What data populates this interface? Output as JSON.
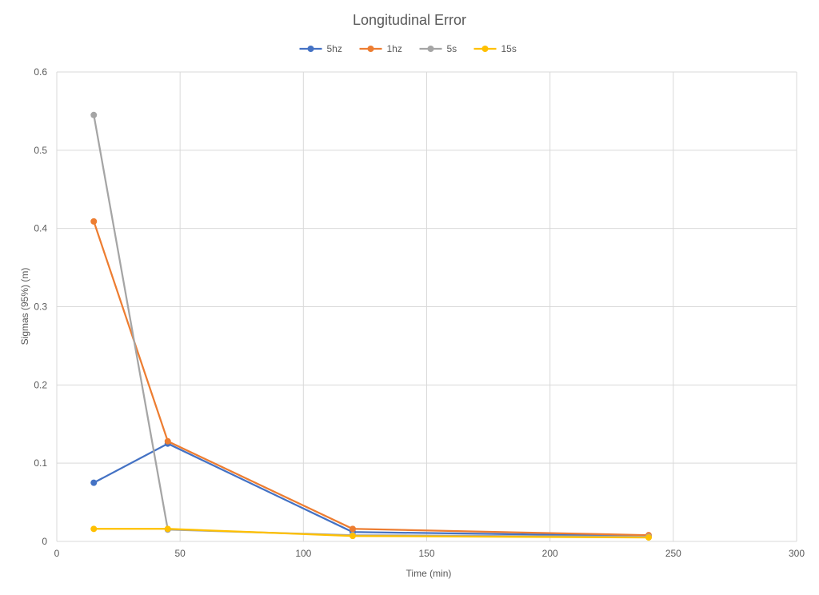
{
  "chart_data": {
    "type": "scatter",
    "title": "Longitudinal Error",
    "xlabel": "Time (min)",
    "ylabel": "Sigmas (95%) (m)",
    "xlim": [
      0,
      300
    ],
    "ylim": [
      0,
      0.6
    ],
    "x_ticks": [
      "0",
      "50",
      "100",
      "150",
      "200",
      "250",
      "300"
    ],
    "y_ticks": [
      "0",
      "0.1",
      "0.2",
      "0.3",
      "0.4",
      "0.5",
      "0.6"
    ],
    "grid": true,
    "legend_position": "top-center",
    "mode": "lines+markers",
    "series": [
      {
        "name": "5hz",
        "color": "#4472C4",
        "x": [
          15,
          45,
          120,
          240
        ],
        "y": [
          0.075,
          0.125,
          0.012,
          0.007
        ]
      },
      {
        "name": "1hz",
        "color": "#ED7D31",
        "x": [
          15,
          45,
          120,
          240
        ],
        "y": [
          0.409,
          0.128,
          0.016,
          0.008
        ]
      },
      {
        "name": "5s",
        "color": "#A5A5A5",
        "x": [
          15,
          45,
          120,
          240
        ],
        "y": [
          0.545,
          0.015,
          0.008,
          0.006
        ]
      },
      {
        "name": "15s",
        "color": "#FFC000",
        "x": [
          15,
          45,
          120,
          240
        ],
        "y": [
          0.016,
          0.016,
          0.007,
          0.005
        ]
      }
    ]
  }
}
